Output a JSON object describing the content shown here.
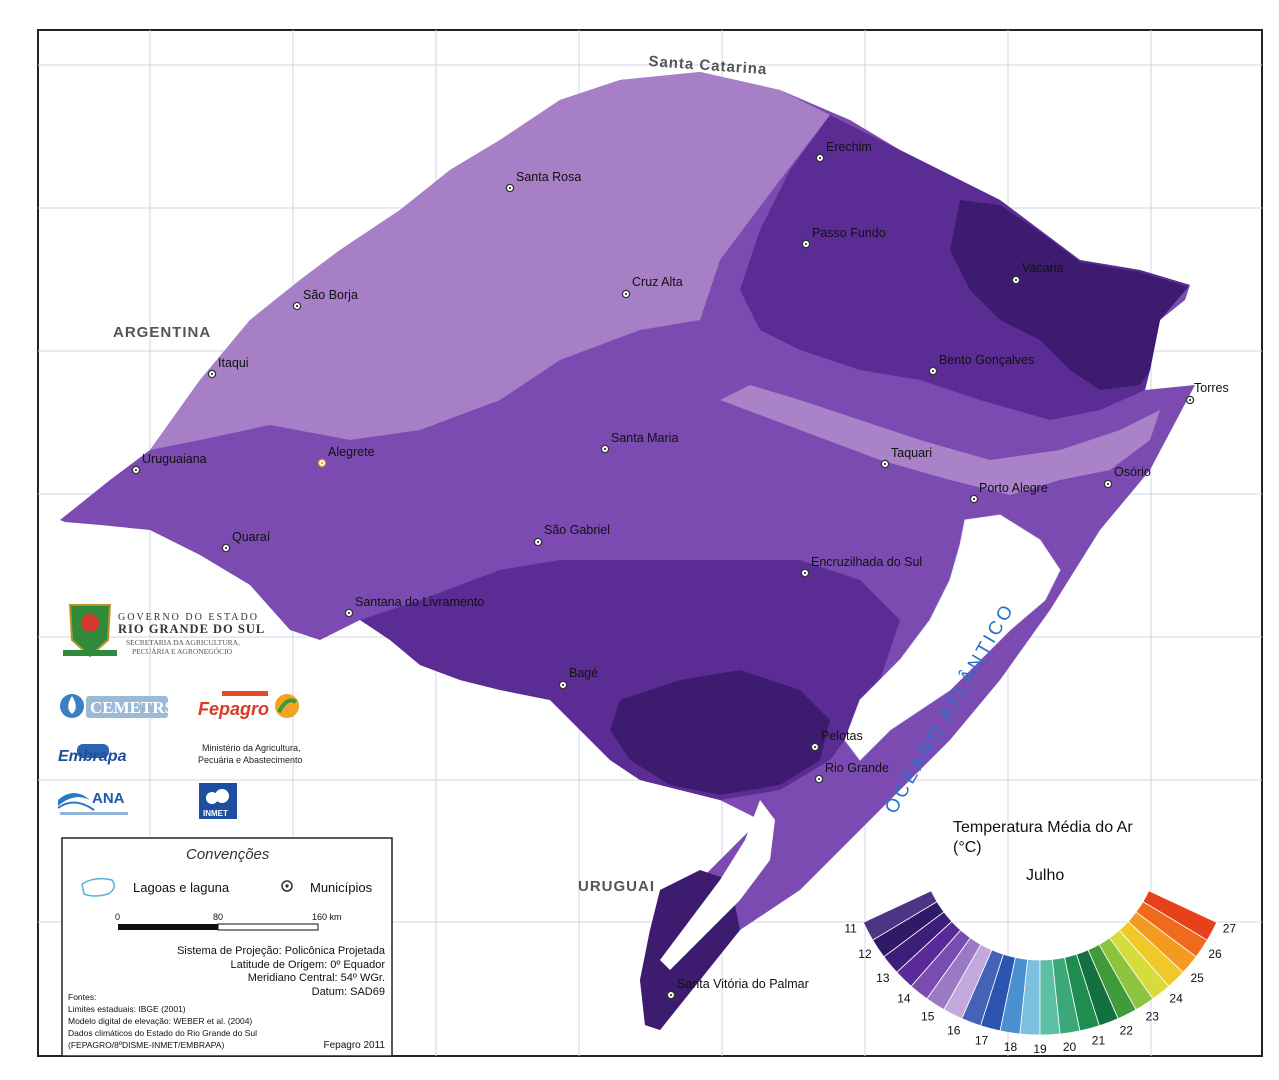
{
  "regions": {
    "north": "Santa Catarina",
    "west": "ARGENTINA",
    "south": "URUGUAI",
    "ocean": "OCEANO ATLÂNTICO"
  },
  "cities": [
    {
      "name": "Erechim"
    },
    {
      "name": "Santa Rosa"
    },
    {
      "name": "Passo Fundo"
    },
    {
      "name": "Vacaria"
    },
    {
      "name": "São Borja"
    },
    {
      "name": "Cruz Alta"
    },
    {
      "name": "Itaqui"
    },
    {
      "name": "Bento Gonçalves"
    },
    {
      "name": "Torres"
    },
    {
      "name": "Santa Maria"
    },
    {
      "name": "Taquari"
    },
    {
      "name": "Osório"
    },
    {
      "name": "Uruguaiana"
    },
    {
      "name": "Alegrete"
    },
    {
      "name": "Porto Alegre"
    },
    {
      "name": "Quaraí"
    },
    {
      "name": "São Gabriel"
    },
    {
      "name": "Encruzilhada do Sul"
    },
    {
      "name": "Santana do Livramento"
    },
    {
      "name": "Bagé"
    },
    {
      "name": "Pelotas"
    },
    {
      "name": "Rio Grande"
    },
    {
      "name": "Santa Vitória do Palmar"
    }
  ],
  "legend": {
    "title_line1": "Temperatura Média do Ar",
    "title_line2": "(°C)",
    "month": "Julho",
    "ticks": [
      "11",
      "12",
      "13",
      "14",
      "15",
      "16",
      "17",
      "18",
      "19",
      "20",
      "21",
      "22",
      "23",
      "24",
      "25",
      "26",
      "27"
    ],
    "colors": [
      "#4d3585",
      "#2e1a66",
      "#3d1f7a",
      "#5a2a9a",
      "#7a4cb0",
      "#9a7ac4",
      "#c2a8dc",
      "#4462b8",
      "#2b54b0",
      "#4a8fd0",
      "#7cc0e0",
      "#5cc0a6",
      "#3aa878",
      "#1f8c50",
      "#157040",
      "#3f9a3a",
      "#8cc43e",
      "#d6dc3a",
      "#f0c828",
      "#f39a20",
      "#ef6a1c",
      "#e8401a"
    ]
  },
  "logos": {
    "gov_line1": "GOVERNO DO ESTADO",
    "gov_line2": "RIO GRANDE DO SUL",
    "gov_line3": "SECRETARIA DA AGRICULTURA,",
    "gov_line4": "PECUÁRIA E AGRONEGÓCIO",
    "cemetrs": "CEMETRS",
    "fepagro": "Fepagro",
    "embrapa": "Embrapa",
    "ministerio_line1": "Ministério da Agricultura,",
    "ministerio_line2": "Pecuária e Abastecimento",
    "ana": "ANA",
    "inmet": "INMET"
  },
  "conventions": {
    "title": "Convenções",
    "lagoas": "Lagoas e laguna",
    "municipios": "Municípios",
    "scale_ticks": [
      "0",
      "80",
      "160 km"
    ],
    "proj_line1": "Sistema de Projeção: Policônica Projetada",
    "proj_line2": "Latitude de Origem: 0º Equador",
    "proj_line3": "Meridiano Central: 54º WGr.",
    "proj_line4": "Datum: SAD69",
    "sources_title": "Fontes:",
    "source1": "Limites estaduais: IBGE (2001)",
    "source2": "Modelo digital de elevação: WEBER et al. (2004)",
    "source3": "Dados climáticos do Estado do Rio Grande do Sul",
    "source4": "(FEPAGRO/8ºDISME-INMET/EMBRAPA)",
    "credit": "Fepagro 2011"
  },
  "colors": {
    "light": "#a77fc6",
    "mid": "#7c4bb2",
    "dark": "#5b2d94",
    "darker": "#3d1c6f",
    "water": "#ffffff"
  }
}
